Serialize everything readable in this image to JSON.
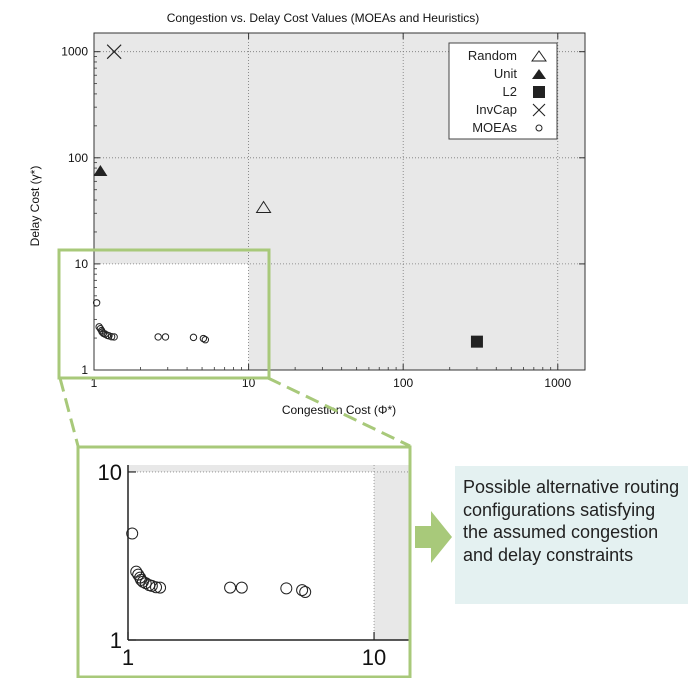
{
  "chart_data": [
    {
      "type": "scatter",
      "title": "Congestion vs. Delay Cost Values (MOEAs and Heuristics)",
      "xlabel": "Congestion Cost (Φ*)",
      "ylabel": "Delay Cost (γ*)",
      "xscale": "log",
      "yscale": "log",
      "xlim": [
        1,
        1500
      ],
      "ylim": [
        1,
        1500
      ],
      "xticks": [
        "1",
        "10",
        "100",
        "1000"
      ],
      "yticks": [
        "1",
        "10",
        "100",
        "1000"
      ],
      "grid": true,
      "legend_position": "top-right",
      "shaded_region": {
        "x": [
          1,
          10
        ],
        "y": [
          1,
          10
        ],
        "meaning": "unshaded feasible region"
      },
      "series": [
        {
          "name": "Random",
          "marker": "triangle-open",
          "points": [
            [
              12.5,
              34
            ]
          ]
        },
        {
          "name": "Unit",
          "marker": "triangle-filled",
          "points": [
            [
              1.1,
              75
            ]
          ]
        },
        {
          "name": "L2",
          "marker": "square-filled",
          "points": [
            [
              300,
              1.85
            ]
          ]
        },
        {
          "name": "InvCap",
          "marker": "x",
          "points": [
            [
              1.35,
              1000
            ]
          ]
        },
        {
          "name": "MOEAs",
          "marker": "circle-open",
          "points": [
            [
              1.04,
              4.3
            ],
            [
              1.08,
              2.55
            ],
            [
              1.1,
              2.45
            ],
            [
              1.12,
              2.35
            ],
            [
              1.13,
              2.28
            ],
            [
              1.15,
              2.22
            ],
            [
              1.18,
              2.18
            ],
            [
              1.22,
              2.12
            ],
            [
              1.25,
              2.1
            ],
            [
              1.3,
              2.06
            ],
            [
              1.35,
              2.05
            ],
            [
              2.6,
              2.05
            ],
            [
              2.9,
              2.05
            ],
            [
              4.4,
              2.03
            ],
            [
              5.1,
              1.98
            ],
            [
              5.25,
              1.93
            ]
          ]
        }
      ]
    },
    {
      "type": "scatter",
      "title": "",
      "xscale": "log",
      "yscale": "log",
      "xlim": [
        1,
        14
      ],
      "ylim": [
        1,
        11
      ],
      "xticks": [
        "1",
        "10"
      ],
      "yticks": [
        "1",
        "10"
      ],
      "series": [
        {
          "name": "MOEAs",
          "marker": "circle-open",
          "points": [
            [
              1.04,
              4.3
            ],
            [
              1.08,
              2.55
            ],
            [
              1.1,
              2.45
            ],
            [
              1.12,
              2.35
            ],
            [
              1.13,
              2.28
            ],
            [
              1.15,
              2.22
            ],
            [
              1.18,
              2.18
            ],
            [
              1.22,
              2.12
            ],
            [
              1.25,
              2.1
            ],
            [
              1.3,
              2.06
            ],
            [
              1.35,
              2.05
            ],
            [
              2.6,
              2.05
            ],
            [
              2.9,
              2.05
            ],
            [
              4.4,
              2.03
            ],
            [
              5.1,
              1.98
            ],
            [
              5.25,
              1.93
            ]
          ]
        }
      ]
    }
  ],
  "callout": {
    "text": "Possible alternative routing configurations satisfying the assumed congestion and delay constraints"
  },
  "colors": {
    "highlight_green": "#a8c97a",
    "annotation_bg": "#e4f1f1",
    "shade_gray": "#e8e8e8"
  }
}
